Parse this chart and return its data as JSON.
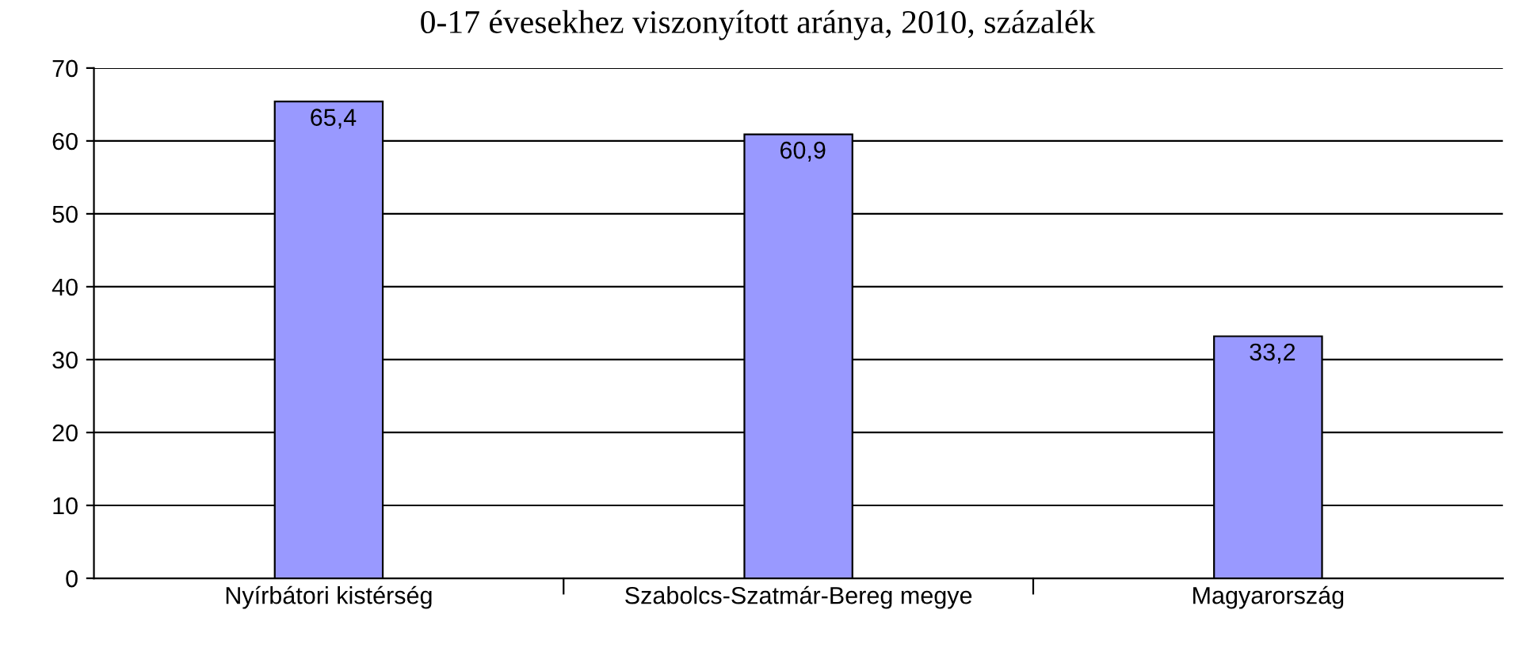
{
  "chart_data": {
    "type": "bar",
    "title": "0-17 évesekhez viszonyított aránya, 2010, százalék",
    "categories": [
      "Nyírbátori kistérség",
      "Szabolcs-Szatmár-Bereg megye",
      "Magyarország"
    ],
    "values": [
      65.4,
      60.9,
      33.2
    ],
    "color": "#9999ff",
    "ylim": [
      0,
      70
    ],
    "yticks": [
      0,
      10,
      20,
      30,
      40,
      50,
      60,
      70
    ],
    "value_labels": [
      "65,4",
      "60,9",
      "33,2"
    ],
    "grid": "y",
    "legend": false
  }
}
